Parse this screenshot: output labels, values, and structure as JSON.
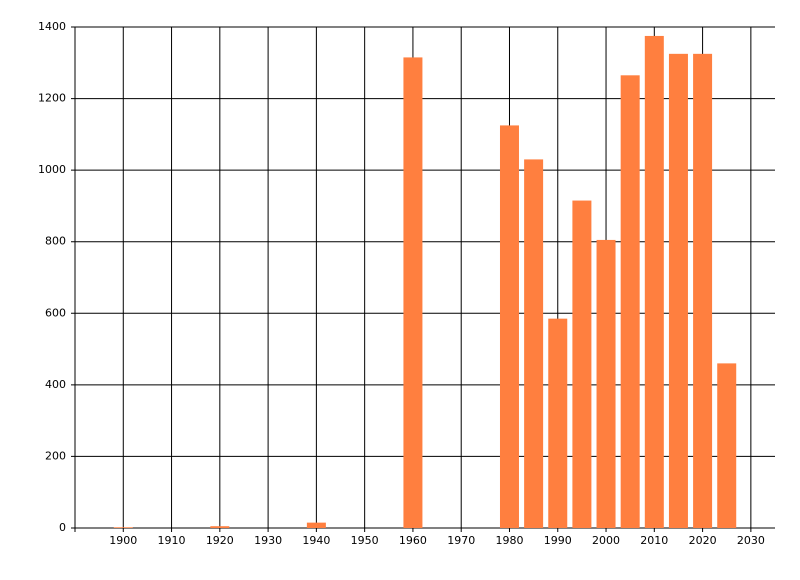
{
  "chart_data": {
    "type": "bar",
    "x": [
      1900,
      1920,
      1940,
      1960,
      1980,
      1985,
      1990,
      1995,
      2000,
      2005,
      2010,
      2015,
      2020,
      2025
    ],
    "values": [
      2,
      5,
      15,
      1315,
      1125,
      1030,
      585,
      915,
      805,
      1265,
      1375,
      1325,
      1325,
      460
    ],
    "color": "#ff7f3f",
    "xlim": [
      1890,
      2035
    ],
    "xticks": [
      1900,
      1910,
      1920,
      1930,
      1940,
      1950,
      1960,
      1970,
      1980,
      1990,
      2000,
      2010,
      2020,
      2030
    ],
    "ylim": [
      0,
      1400
    ],
    "yticks": [
      0,
      200,
      400,
      600,
      800,
      1000,
      1200,
      1400
    ],
    "grid": true
  }
}
